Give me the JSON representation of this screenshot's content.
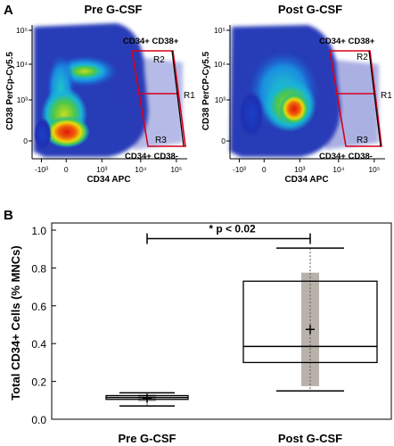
{
  "panel_labels": {
    "a": "A",
    "b": "B"
  },
  "colors": {
    "gate": "#d6001c",
    "axis": "#000000",
    "whisker_box": "#b9b2ab",
    "density_low": "#1e28a8",
    "density_mid": "#18c8d8",
    "density_high": "#e8e000",
    "density_peak": "#e21b0c"
  },
  "chart_data": [
    {
      "type": "scatter",
      "subtype": "flow-cytometry-density",
      "title": "Pre G-CSF",
      "xlabel": "CD34 APC",
      "ylabel": "CD38 PerCp-Cy5.5",
      "x_scale": "biexponential",
      "y_scale": "biexponential",
      "x_ticks": [
        "-10³",
        "0",
        "10³",
        "10⁴",
        "10⁵"
      ],
      "y_ticks": [
        "10⁵",
        "10⁴",
        "10³",
        "0"
      ],
      "gates": [
        {
          "name": "R1",
          "label_position": "right"
        },
        {
          "name": "R2",
          "region": "upper"
        },
        {
          "name": "R3",
          "region": "lower"
        }
      ],
      "annotations": [
        "CD34+ CD38+",
        "CD34+ CD38-"
      ]
    },
    {
      "type": "scatter",
      "subtype": "flow-cytometry-density",
      "title": "Post G-CSF",
      "xlabel": "CD34 APC",
      "ylabel": "CD38 PerCP-Cy5.5",
      "x_scale": "biexponential",
      "y_scale": "biexponential",
      "x_ticks": [
        "-10³",
        "0",
        "10³",
        "10⁴",
        "10⁵"
      ],
      "y_ticks": [
        "10⁵",
        "10⁴",
        "10³",
        "0"
      ],
      "gates": [
        {
          "name": "R1",
          "label_position": "right"
        },
        {
          "name": "R2",
          "region": "upper"
        },
        {
          "name": "R3",
          "region": "lower"
        }
      ],
      "annotations": [
        "CD34+ CD38+",
        "CD34+ CD38-"
      ]
    },
    {
      "type": "box",
      "title": "",
      "xlabel": "",
      "ylabel": "Total CD34+ Cells (% MNCs)",
      "ylim": [
        0,
        1.0
      ],
      "y_ticks": [
        "0.0",
        "0.2",
        "0.4",
        "0.6",
        "0.8",
        "1.0"
      ],
      "categories": [
        "Pre G-CSF",
        "Post G-CSF"
      ],
      "boxes": [
        {
          "min": 0.07,
          "q1": 0.105,
          "median": 0.115,
          "q3": 0.125,
          "max": 0.14,
          "mean": 0.11,
          "sd_low": 0.095,
          "sd_high": 0.13,
          "whisker_low": 0.07,
          "whisker_high": 0.14
        },
        {
          "min": 0.15,
          "q1": 0.3,
          "median": 0.385,
          "q3": 0.73,
          "max": 0.905,
          "mean": 0.475,
          "sd_low": 0.175,
          "sd_high": 0.775,
          "whisker_low": 0.15,
          "whisker_high": 0.905
        }
      ],
      "significance": {
        "label": "* p < 0.02",
        "y": 0.955
      }
    }
  ]
}
